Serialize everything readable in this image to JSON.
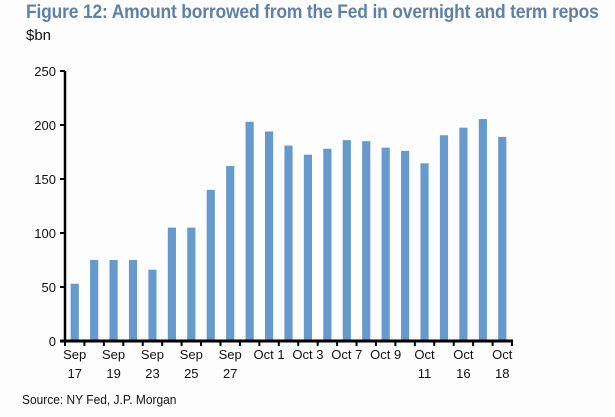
{
  "chart_data": {
    "type": "bar",
    "title": "Figure 12: Amount borrowed from the Fed in overnight and term repos",
    "ylabel": "$bn",
    "xlabel": "",
    "source": "Source: NY Fed, J.P. Morgan",
    "ylim": [
      0,
      250
    ],
    "yticks": [
      0,
      50,
      100,
      150,
      200,
      250
    ],
    "grid": false,
    "bar_color": "#6699cc",
    "title_color": "#5d82a8",
    "categories": [
      [
        "Sep",
        "17"
      ],
      [
        "",
        ""
      ],
      [
        "Sep",
        "19"
      ],
      [
        "",
        ""
      ],
      [
        "Sep",
        "23"
      ],
      [
        "",
        ""
      ],
      [
        "Sep",
        "25"
      ],
      [
        "",
        ""
      ],
      [
        "Sep",
        "27"
      ],
      [
        "",
        ""
      ],
      [
        "Oct 1",
        ""
      ],
      [
        "",
        ""
      ],
      [
        "Oct 3",
        ""
      ],
      [
        "",
        ""
      ],
      [
        "Oct 7",
        ""
      ],
      [
        "",
        ""
      ],
      [
        "Oct 9",
        ""
      ],
      [
        "",
        ""
      ],
      [
        "Oct",
        "11"
      ],
      [
        "",
        ""
      ],
      [
        "Oct",
        "16"
      ],
      [
        "",
        ""
      ],
      [
        "Oct",
        "18"
      ]
    ],
    "values": [
      53,
      75,
      75,
      75,
      66,
      105,
      105,
      140,
      162,
      203,
      194,
      181,
      172.5,
      178,
      186,
      185,
      179,
      176,
      164.5,
      190.5,
      197.5,
      205.5,
      189
    ]
  }
}
